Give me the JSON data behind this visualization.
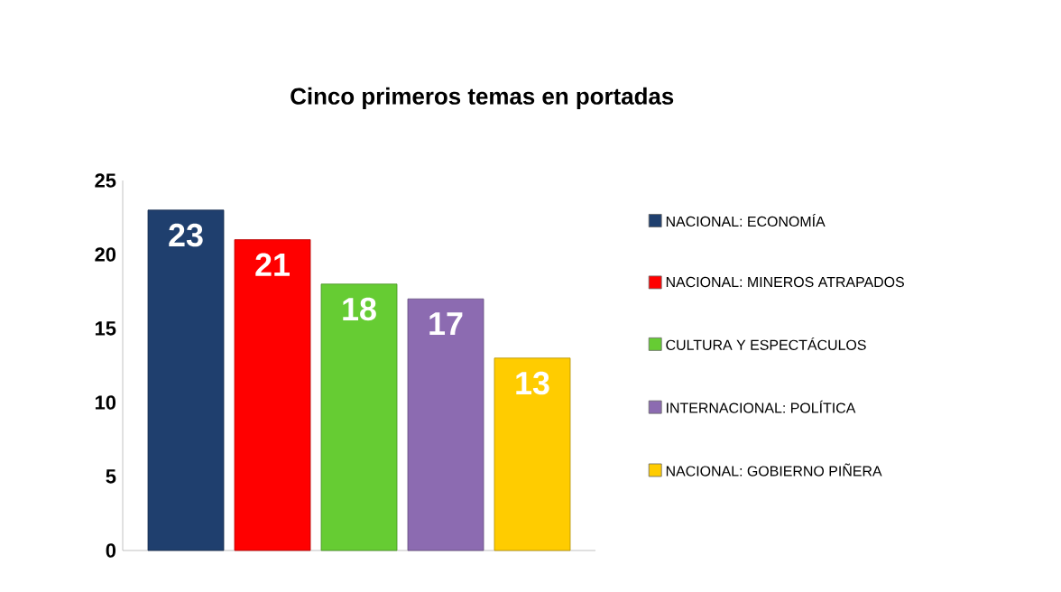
{
  "chart_data": {
    "type": "bar",
    "title": "Cinco primeros temas en portadas",
    "categories": [
      null
    ],
    "series": [
      {
        "name": "NACIONAL: ECONOMÍA",
        "color": "#1f3f6e",
        "values": [
          23
        ]
      },
      {
        "name": "NACIONAL: MINEROS ATRAPADOS",
        "color": "#ff0000",
        "values": [
          21
        ]
      },
      {
        "name": "CULTURA Y ESPECTÁCULOS",
        "color": "#66cc33",
        "values": [
          18
        ]
      },
      {
        "name": "INTERNACIONAL: POLÍTICA",
        "color": "#8c6bb1",
        "values": [
          17
        ]
      },
      {
        "name": "NACIONAL: GOBIERNO PIÑERA",
        "color": "#ffcc00",
        "values": [
          13
        ]
      }
    ],
    "ylim": [
      0,
      25
    ],
    "yticks": [
      0,
      5,
      10,
      15,
      20,
      25
    ],
    "data_labels": true,
    "legend": "right",
    "grid": false
  }
}
